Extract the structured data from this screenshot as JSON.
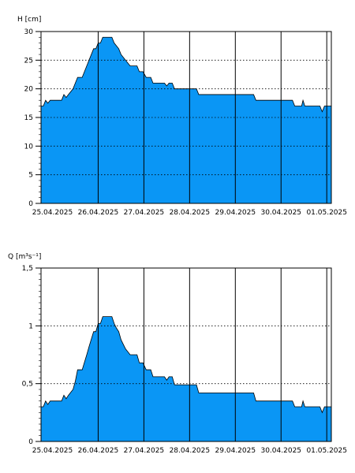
{
  "chart_data": [
    {
      "type": "area",
      "unit_label": "H [cm]",
      "x_ticks": [
        "25.04.2025",
        "26.04.2025",
        "27.04.2025",
        "28.04.2025",
        "29.04.2025",
        "30.04.2025",
        "01.05.2025"
      ],
      "xlim": [
        -0.25,
        6.1
      ],
      "ylim": [
        0,
        30
      ],
      "y_ticks": [
        "0",
        "5",
        "10",
        "15",
        "20",
        "25",
        "30"
      ],
      "y_tick_values": [
        0,
        5,
        10,
        15,
        20,
        25,
        30
      ],
      "minor_step": 1,
      "grid": "dotted-horizontal",
      "fill_color": "#0a96f5",
      "points": [
        [
          -0.25,
          17
        ],
        [
          -0.2,
          17
        ],
        [
          -0.15,
          18
        ],
        [
          -0.1,
          17.5
        ],
        [
          -0.05,
          18
        ],
        [
          0.1,
          18
        ],
        [
          0.2,
          18
        ],
        [
          0.25,
          19
        ],
        [
          0.3,
          18.5
        ],
        [
          0.35,
          19
        ],
        [
          0.45,
          20
        ],
        [
          0.5,
          21
        ],
        [
          0.55,
          22
        ],
        [
          0.65,
          22
        ],
        [
          0.75,
          24
        ],
        [
          0.8,
          25
        ],
        [
          0.9,
          27
        ],
        [
          0.95,
          27
        ],
        [
          1.0,
          28
        ],
        [
          1.05,
          28
        ],
        [
          1.1,
          29
        ],
        [
          1.3,
          29
        ],
        [
          1.35,
          28
        ],
        [
          1.4,
          27.5
        ],
        [
          1.45,
          27
        ],
        [
          1.5,
          26
        ],
        [
          1.55,
          25.5
        ],
        [
          1.6,
          25
        ],
        [
          1.7,
          24
        ],
        [
          1.85,
          24
        ],
        [
          1.9,
          23
        ],
        [
          1.98,
          23
        ],
        [
          2.05,
          22
        ],
        [
          2.15,
          22
        ],
        [
          2.2,
          21
        ],
        [
          2.45,
          21
        ],
        [
          2.5,
          20.5
        ],
        [
          2.55,
          21
        ],
        [
          2.62,
          21
        ],
        [
          2.67,
          20
        ],
        [
          3.15,
          20
        ],
        [
          3.2,
          19
        ],
        [
          4.4,
          19
        ],
        [
          4.45,
          18
        ],
        [
          5.25,
          18
        ],
        [
          5.3,
          17
        ],
        [
          5.45,
          17
        ],
        [
          5.48,
          18
        ],
        [
          5.52,
          17
        ],
        [
          5.85,
          17
        ],
        [
          5.9,
          16
        ],
        [
          5.95,
          17
        ],
        [
          6.1,
          17
        ]
      ]
    },
    {
      "type": "area",
      "unit_label": "Q [m³s⁻¹]",
      "x_ticks": [
        "25.04.2025",
        "26.04.2025",
        "27.04.2025",
        "28.04.2025",
        "29.04.2025",
        "30.04.2025",
        "01.05.2025"
      ],
      "xlim": [
        -0.25,
        6.1
      ],
      "ylim": [
        0,
        1.5
      ],
      "y_ticks": [
        "0",
        "0,5",
        "1",
        "1,5"
      ],
      "y_tick_values": [
        0,
        0.5,
        1,
        1.5
      ],
      "minor_step": 0.05,
      "grid": "dotted-horizontal",
      "fill_color": "#0a96f5",
      "points": [
        [
          -0.25,
          0.3
        ],
        [
          -0.2,
          0.3
        ],
        [
          -0.15,
          0.35
        ],
        [
          -0.1,
          0.32
        ],
        [
          -0.05,
          0.35
        ],
        [
          0.1,
          0.35
        ],
        [
          0.2,
          0.35
        ],
        [
          0.25,
          0.4
        ],
        [
          0.3,
          0.37
        ],
        [
          0.35,
          0.4
        ],
        [
          0.45,
          0.45
        ],
        [
          0.5,
          0.52
        ],
        [
          0.55,
          0.62
        ],
        [
          0.65,
          0.62
        ],
        [
          0.75,
          0.75
        ],
        [
          0.8,
          0.82
        ],
        [
          0.9,
          0.95
        ],
        [
          0.95,
          0.95
        ],
        [
          1.0,
          1.02
        ],
        [
          1.05,
          1.02
        ],
        [
          1.1,
          1.08
        ],
        [
          1.3,
          1.08
        ],
        [
          1.35,
          1.02
        ],
        [
          1.4,
          0.98
        ],
        [
          1.45,
          0.95
        ],
        [
          1.5,
          0.88
        ],
        [
          1.55,
          0.84
        ],
        [
          1.6,
          0.8
        ],
        [
          1.7,
          0.75
        ],
        [
          1.85,
          0.75
        ],
        [
          1.9,
          0.68
        ],
        [
          1.98,
          0.68
        ],
        [
          2.05,
          0.62
        ],
        [
          2.15,
          0.62
        ],
        [
          2.2,
          0.56
        ],
        [
          2.45,
          0.56
        ],
        [
          2.5,
          0.53
        ],
        [
          2.55,
          0.56
        ],
        [
          2.62,
          0.56
        ],
        [
          2.67,
          0.49
        ],
        [
          3.15,
          0.49
        ],
        [
          3.2,
          0.42
        ],
        [
          4.4,
          0.42
        ],
        [
          4.45,
          0.35
        ],
        [
          5.25,
          0.35
        ],
        [
          5.3,
          0.3
        ],
        [
          5.45,
          0.3
        ],
        [
          5.48,
          0.35
        ],
        [
          5.52,
          0.3
        ],
        [
          5.85,
          0.3
        ],
        [
          5.9,
          0.25
        ],
        [
          5.95,
          0.3
        ],
        [
          6.1,
          0.3
        ]
      ]
    }
  ]
}
